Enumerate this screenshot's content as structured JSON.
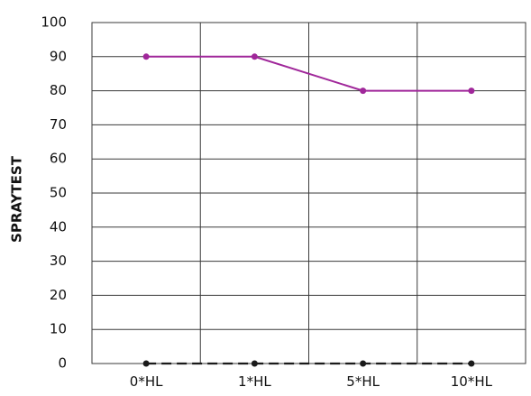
{
  "chart_data": {
    "type": "line",
    "title": "",
    "xlabel": "",
    "ylabel": "SPRAYTEST",
    "categories": [
      "0*HL",
      "1*HL",
      "5*HL",
      "10*HL"
    ],
    "ylim": [
      0,
      100
    ],
    "yticks": [
      0,
      10,
      20,
      30,
      40,
      50,
      60,
      70,
      80,
      90,
      100
    ],
    "grid": true,
    "legend": "none",
    "series": [
      {
        "values": [
          90,
          90,
          80,
          80
        ],
        "color": "#a0279a",
        "line_style": "solid",
        "marker": "circle"
      },
      {
        "values": [
          0,
          0,
          0,
          0
        ],
        "color": "#1a1a1a",
        "line_style": "dashed",
        "marker": "circle"
      }
    ]
  }
}
